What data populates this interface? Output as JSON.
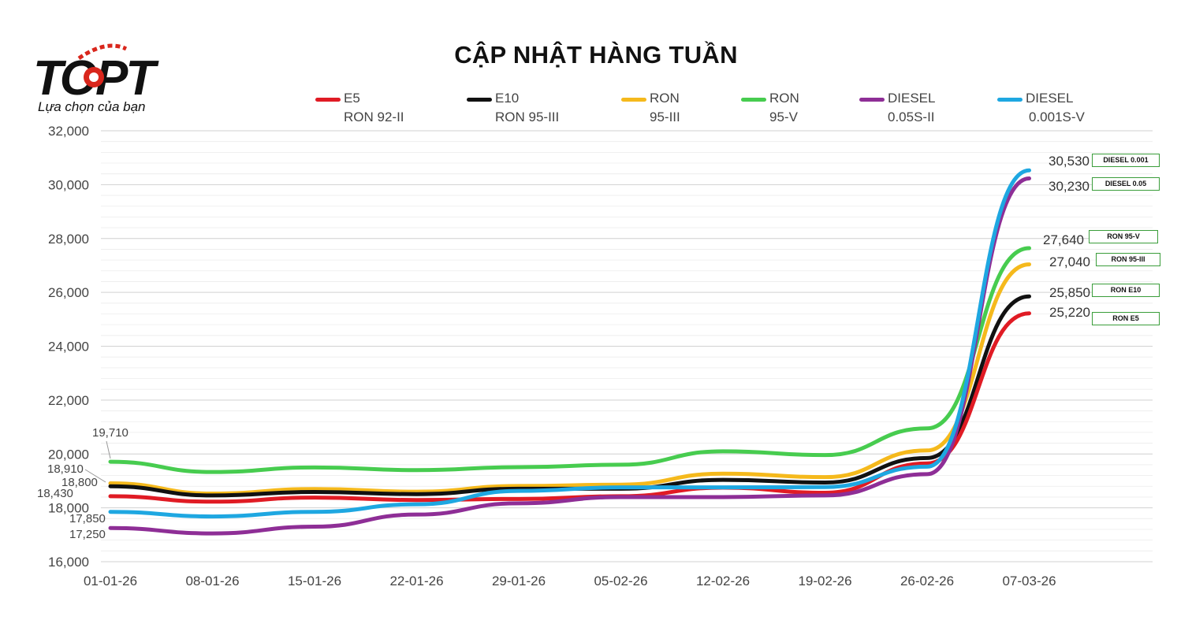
{
  "logo": {
    "text": "TOPT",
    "tagline": "Lựa chọn của bạn"
  },
  "chart_data": {
    "type": "line",
    "title": "CẬP NHẬT HÀNG TUẦN",
    "xlabel": "",
    "ylabel": "",
    "categories": [
      "01-01-26",
      "08-01-26",
      "15-01-26",
      "22-01-26",
      "29-01-26",
      "05-02-26",
      "12-02-26",
      "19-02-26",
      "26-02-26",
      "07-03-26"
    ],
    "ylim": [
      16000,
      32000
    ],
    "yticks": [
      "16,000",
      "18,000",
      "20,000",
      "22,000",
      "24,000",
      "26,000",
      "28,000",
      "30,000",
      "32,000"
    ],
    "grid": true,
    "legend_position": "top",
    "series": [
      {
        "key": "e5",
        "legend_line1": "E5",
        "legend_line2": "RON 92-II",
        "color": "#e01b24",
        "tag": "RON E5",
        "values": [
          18430,
          18230,
          18380,
          18290,
          18330,
          18430,
          18750,
          18560,
          19650,
          25220
        ]
      },
      {
        "key": "e10",
        "legend_line1": "E10",
        "legend_line2": "RON 95-III",
        "color": "#111111",
        "tag": "RON E10",
        "values": [
          18800,
          18460,
          18590,
          18510,
          18710,
          18710,
          19040,
          18940,
          19850,
          25850
        ]
      },
      {
        "key": "r95iii",
        "legend_line1": "RON",
        "legend_line2": "95-III",
        "color": "#f5b91c",
        "tag": "RON 95-III",
        "values": [
          18910,
          18530,
          18700,
          18600,
          18810,
          18860,
          19270,
          19140,
          20130,
          27040
        ]
      },
      {
        "key": "r95v",
        "legend_line1": "RON",
        "legend_line2": "95-V",
        "color": "#47cc4f",
        "tag": "RON 95-V",
        "values": [
          19710,
          19330,
          19500,
          19400,
          19510,
          19600,
          20100,
          19960,
          20950,
          27640
        ]
      },
      {
        "key": "d005",
        "legend_line1": "DIESEL",
        "legend_line2": "0.05S-II",
        "color": "#8e2e96",
        "tag": "DIESEL 0.05",
        "values": [
          17250,
          17050,
          17300,
          17750,
          18170,
          18400,
          18400,
          18460,
          19250,
          30230
        ]
      },
      {
        "key": "d0001",
        "legend_line1": "DIESEL",
        "legend_line2": "0.001S-V",
        "color": "#1ea7e1",
        "tag": "DIESEL 0.001",
        "values": [
          17850,
          17680,
          17850,
          18130,
          18630,
          18760,
          18760,
          18770,
          19530,
          30530
        ]
      }
    ],
    "start_labels": [
      "19,710",
      "18,910",
      "18,800",
      "18,430",
      "17,850",
      "17,250"
    ],
    "end_labels": [
      "30,530",
      "30,230",
      "27,640",
      "27,040",
      "25,850",
      "25,220"
    ]
  }
}
